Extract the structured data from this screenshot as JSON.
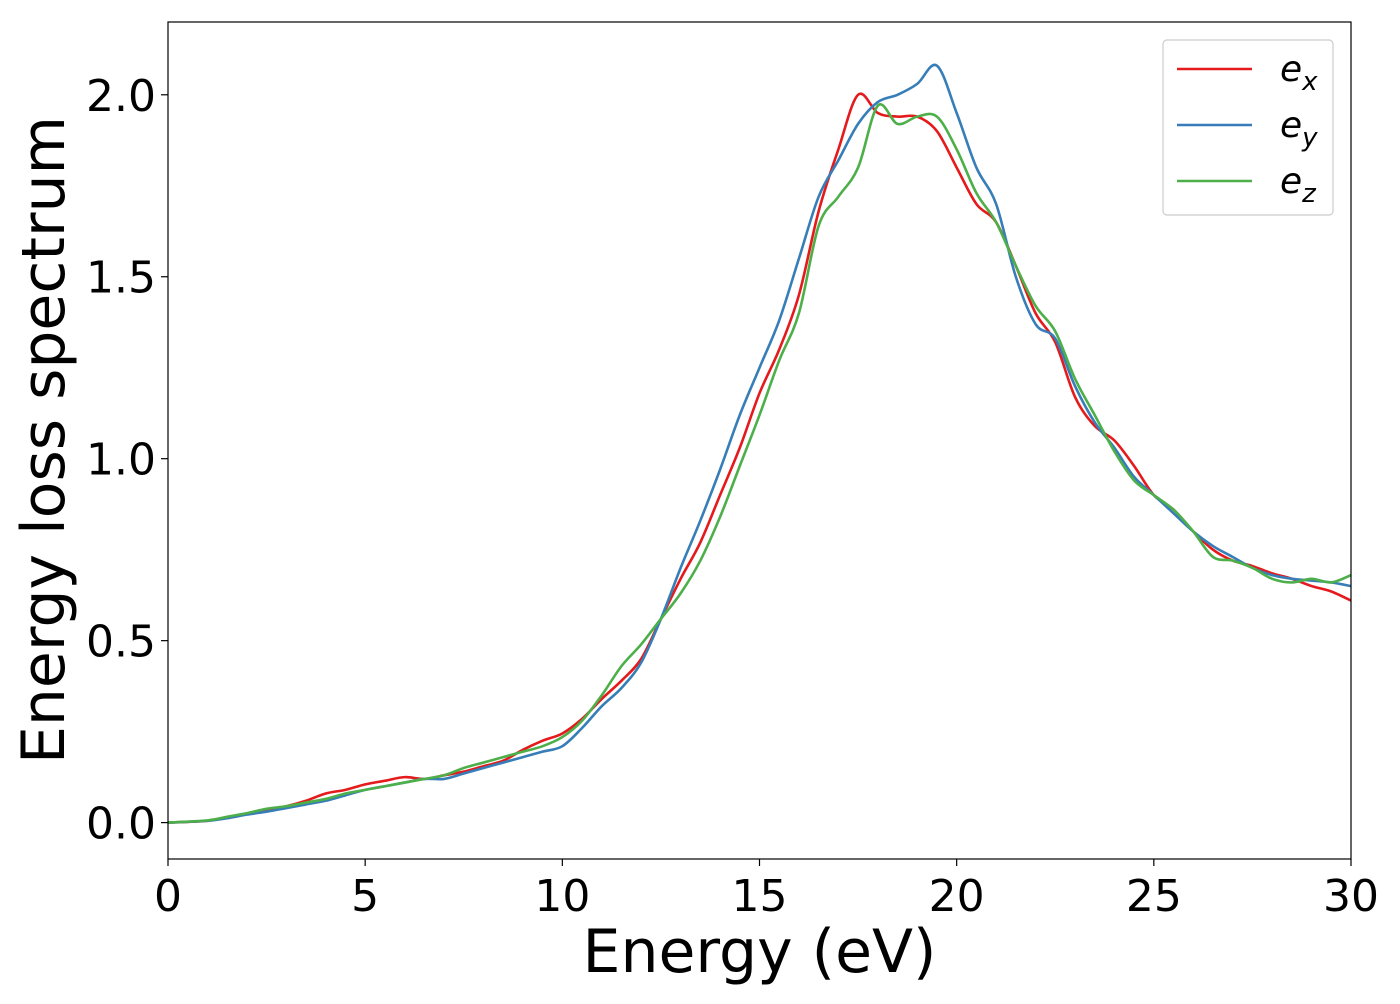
{
  "chart_data": {
    "type": "line",
    "title": "",
    "xlabel": "Energy (eV)",
    "ylabel": "Energy loss spectrum",
    "xlim": [
      0,
      30
    ],
    "ylim": [
      -0.1,
      2.2
    ],
    "xticks": [
      0,
      5,
      10,
      15,
      20,
      25,
      30
    ],
    "xtick_labels": [
      "0",
      "5",
      "10",
      "15",
      "20",
      "25",
      "30"
    ],
    "yticks": [
      0.0,
      0.5,
      1.0,
      1.5,
      2.0
    ],
    "ytick_labels": [
      "0.0",
      "0.5",
      "1.0",
      "1.5",
      "2.0"
    ],
    "grid": false,
    "legend_position": "top-right",
    "x": [
      0,
      1,
      1.5,
      2,
      2.5,
      3,
      3.5,
      4,
      4.5,
      5,
      5.5,
      6,
      6.5,
      7,
      7.5,
      8,
      8.5,
      9,
      9.5,
      10,
      10.5,
      11,
      11.5,
      12,
      12.5,
      13,
      13.5,
      14,
      14.5,
      15,
      15.5,
      16,
      16.5,
      17,
      17.5,
      18,
      18.5,
      19,
      19.5,
      20,
      20.5,
      21,
      21.5,
      22,
      22.5,
      23,
      23.5,
      24,
      24.5,
      25,
      25.5,
      26,
      26.5,
      27,
      27.5,
      28,
      28.5,
      29,
      29.5,
      30
    ],
    "series": [
      {
        "name": "e",
        "subscript": "x",
        "color": "#e41a1c",
        "values": [
          0.0,
          0.005,
          0.015,
          0.025,
          0.035,
          0.045,
          0.06,
          0.08,
          0.09,
          0.105,
          0.115,
          0.125,
          0.12,
          0.13,
          0.14,
          0.155,
          0.17,
          0.2,
          0.225,
          0.245,
          0.285,
          0.34,
          0.39,
          0.45,
          0.56,
          0.67,
          0.77,
          0.9,
          1.03,
          1.18,
          1.3,
          1.45,
          1.68,
          1.85,
          2.0,
          1.95,
          1.94,
          1.94,
          1.9,
          1.8,
          1.7,
          1.65,
          1.53,
          1.4,
          1.32,
          1.17,
          1.09,
          1.05,
          0.98,
          0.9,
          0.86,
          0.8,
          0.75,
          0.72,
          0.705,
          0.685,
          0.67,
          0.65,
          0.635,
          0.61
        ]
      },
      {
        "name": "e",
        "subscript": "y",
        "color": "#377eb8",
        "values": [
          0.0,
          0.005,
          0.012,
          0.022,
          0.03,
          0.04,
          0.05,
          0.06,
          0.075,
          0.09,
          0.1,
          0.11,
          0.12,
          0.12,
          0.135,
          0.15,
          0.165,
          0.18,
          0.195,
          0.21,
          0.26,
          0.32,
          0.37,
          0.44,
          0.56,
          0.7,
          0.83,
          0.97,
          1.12,
          1.25,
          1.38,
          1.55,
          1.72,
          1.82,
          1.92,
          1.98,
          2.0,
          2.03,
          2.08,
          1.95,
          1.8,
          1.7,
          1.5,
          1.37,
          1.33,
          1.2,
          1.1,
          1.03,
          0.95,
          0.9,
          0.85,
          0.8,
          0.76,
          0.73,
          0.7,
          0.68,
          0.67,
          0.665,
          0.66,
          0.65
        ]
      },
      {
        "name": "e",
        "subscript": "z",
        "color": "#4daf4a",
        "values": [
          0.0,
          0.006,
          0.016,
          0.026,
          0.038,
          0.045,
          0.055,
          0.065,
          0.08,
          0.09,
          0.1,
          0.11,
          0.12,
          0.13,
          0.15,
          0.165,
          0.18,
          0.195,
          0.21,
          0.235,
          0.28,
          0.35,
          0.43,
          0.49,
          0.56,
          0.63,
          0.72,
          0.84,
          0.98,
          1.12,
          1.27,
          1.4,
          1.64,
          1.72,
          1.8,
          1.97,
          1.92,
          1.94,
          1.94,
          1.85,
          1.73,
          1.65,
          1.53,
          1.42,
          1.35,
          1.22,
          1.12,
          1.02,
          0.94,
          0.9,
          0.86,
          0.8,
          0.73,
          0.72,
          0.7,
          0.67,
          0.66,
          0.67,
          0.66,
          0.68
        ]
      }
    ]
  }
}
